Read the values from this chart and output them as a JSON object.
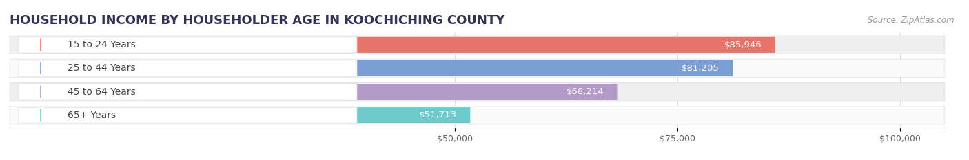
{
  "title": "HOUSEHOLD INCOME BY HOUSEHOLDER AGE IN KOOCHICHING COUNTY",
  "source": "Source: ZipAtlas.com",
  "categories": [
    "15 to 24 Years",
    "25 to 44 Years",
    "45 to 64 Years",
    "65+ Years"
  ],
  "values": [
    85946,
    81205,
    68214,
    51713
  ],
  "bar_colors": [
    "#E8736A",
    "#7B9ED4",
    "#B39BC8",
    "#6DCACC"
  ],
  "bar_labels": [
    "$85,946",
    "$81,205",
    "$68,214",
    "$51,713"
  ],
  "xlim": [
    0,
    105000
  ],
  "xticks": [
    50000,
    75000,
    100000
  ],
  "xticklabels": [
    "$50,000",
    "$75,000",
    "$100,000"
  ],
  "title_fontsize": 13,
  "source_fontsize": 8.5,
  "label_fontsize": 9.5,
  "cat_fontsize": 10,
  "bar_height": 0.68,
  "row_bg_colors": [
    "#EFEFEF",
    "#FAFAFA",
    "#EFEFEF",
    "#FAFAFA"
  ],
  "pill_bg_color": "#FFFFFF",
  "pill_border_color": "#DDDDDD",
  "category_label_color": "#444444",
  "value_label_color": "#FFFFFF",
  "grid_color": "#DDDDDD",
  "title_color": "#333355"
}
